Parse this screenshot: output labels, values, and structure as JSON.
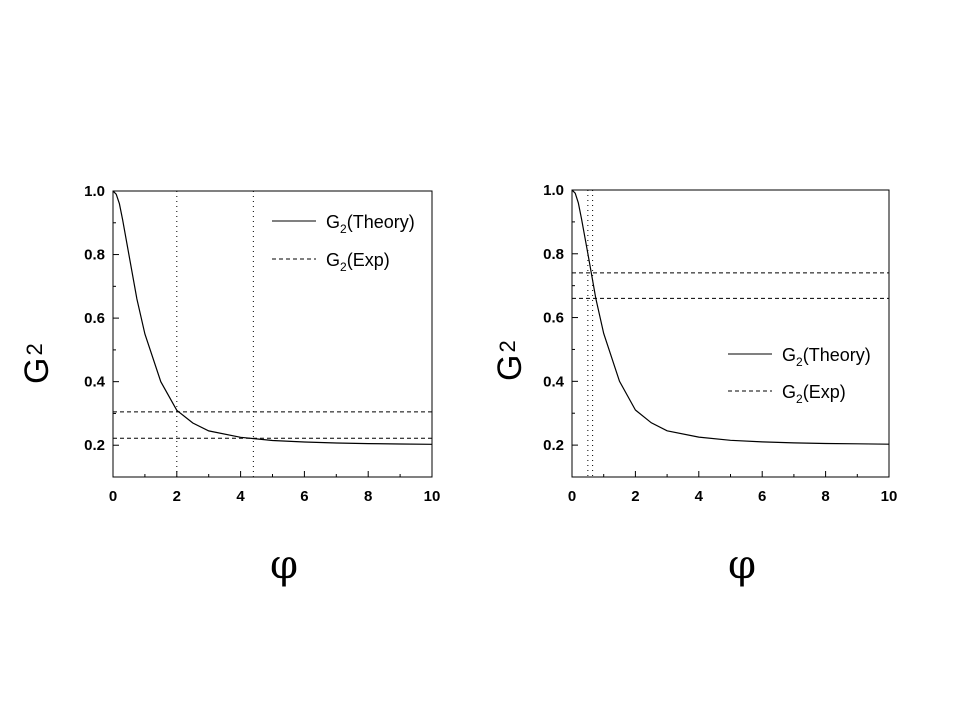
{
  "chart_data": [
    {
      "type": "line",
      "xlabel": "φ",
      "ylabel": "G",
      "ylabel_sub": "2",
      "xlim": [
        0,
        10
      ],
      "ylim": [
        0.1,
        1.0
      ],
      "xticks": [
        "0",
        "2",
        "4",
        "6",
        "8",
        "10"
      ],
      "yticks": [
        "0.2",
        "0.4",
        "0.6",
        "0.8",
        "1.0"
      ],
      "grid": false,
      "legend_position": "top-right",
      "series": [
        {
          "name": "G(Theory)",
          "name_main": "G",
          "name_sub": "2",
          "name_suffix": "(Theory)",
          "style": "solid",
          "x": [
            0,
            0.1,
            0.2,
            0.3,
            0.5,
            0.75,
            1.0,
            1.5,
            2.0,
            2.5,
            3.0,
            4.0,
            5.0,
            6.0,
            7.0,
            8.0,
            9.0,
            10.0
          ],
          "y": [
            1.0,
            0.99,
            0.96,
            0.91,
            0.8,
            0.66,
            0.55,
            0.4,
            0.31,
            0.27,
            0.245,
            0.225,
            0.215,
            0.21,
            0.207,
            0.205,
            0.204,
            0.203
          ]
        },
        {
          "name": "G(Exp)",
          "name_main": "G",
          "name_sub": "2",
          "name_suffix": "(Exp)",
          "style": "dashed",
          "hlines": [
            0.305,
            0.222
          ]
        }
      ],
      "vlines_dotted": [
        2.0,
        4.4
      ]
    },
    {
      "type": "line",
      "xlabel": "φ",
      "ylabel": "G",
      "ylabel_sub": "2",
      "xlim": [
        0,
        10
      ],
      "ylim": [
        0.1,
        1.0
      ],
      "xticks": [
        "0",
        "2",
        "4",
        "6",
        "8",
        "10"
      ],
      "yticks": [
        "0.2",
        "0.4",
        "0.6",
        "0.8",
        "1.0"
      ],
      "grid": false,
      "legend_position": "center-right",
      "series": [
        {
          "name": "G(Theory)",
          "name_main": "G",
          "name_sub": "2",
          "name_suffix": "(Theory)",
          "style": "solid",
          "x": [
            0,
            0.1,
            0.2,
            0.3,
            0.5,
            0.75,
            1.0,
            1.5,
            2.0,
            2.5,
            3.0,
            4.0,
            5.0,
            6.0,
            7.0,
            8.0,
            9.0,
            10.0
          ],
          "y": [
            1.0,
            0.99,
            0.96,
            0.91,
            0.8,
            0.66,
            0.55,
            0.4,
            0.31,
            0.27,
            0.245,
            0.225,
            0.215,
            0.21,
            0.207,
            0.205,
            0.204,
            0.203
          ]
        },
        {
          "name": "G(Exp)",
          "name_main": "G",
          "name_sub": "2",
          "name_suffix": "(Exp)",
          "style": "dashed",
          "hlines": [
            0.74,
            0.66
          ]
        }
      ],
      "vlines_dotted": [
        0.5,
        0.65
      ]
    }
  ]
}
